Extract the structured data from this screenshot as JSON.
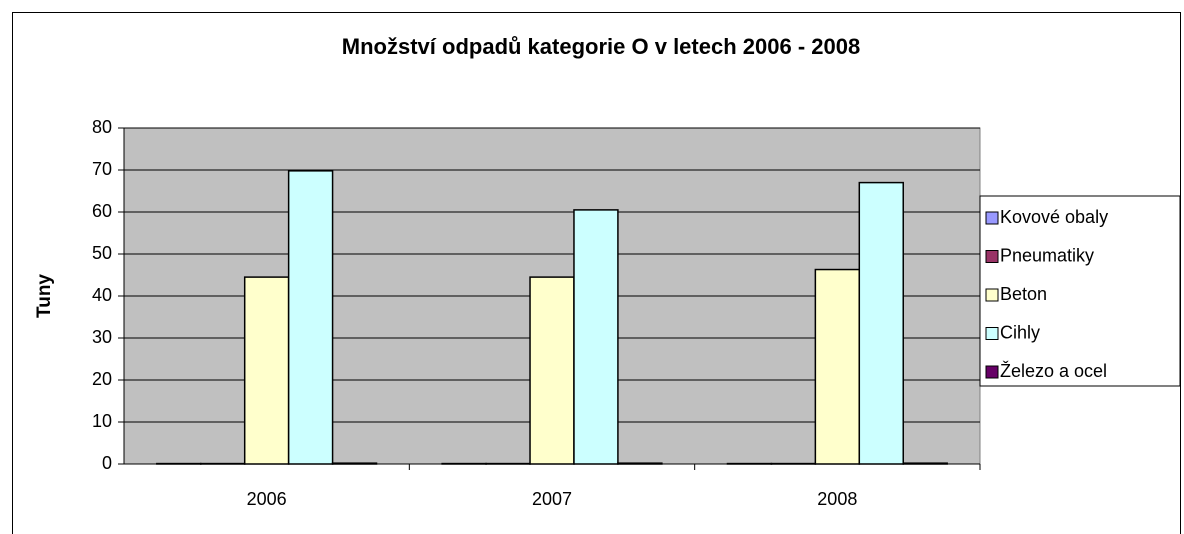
{
  "chart_data": {
    "type": "bar",
    "title": "Množství odpadů kategorie O v letech 2006 - 2008",
    "y_label": "Tuny",
    "categories": [
      "2006",
      "2007",
      "2008"
    ],
    "series": [
      {
        "name": "Kovové obaly",
        "color": "#9999ff",
        "values": [
          0.1,
          0.1,
          0.1
        ]
      },
      {
        "name": "Pneumatiky",
        "color": "#993366",
        "values": [
          0.1,
          0.1,
          0.1
        ]
      },
      {
        "name": "Beton",
        "color": "#ffffcc",
        "values": [
          44.5,
          44.5,
          46.3
        ]
      },
      {
        "name": "Cihly",
        "color": "#ccffff",
        "values": [
          69.8,
          60.5,
          67
        ]
      },
      {
        "name": "Železo a ocel",
        "color": "#660066",
        "values": [
          0.2,
          0.2,
          0.2
        ]
      }
    ],
    "ylim": [
      0,
      80
    ],
    "yticks": [
      0,
      10,
      20,
      30,
      40,
      50,
      60,
      70,
      80
    ],
    "grid": true,
    "legend": "right"
  }
}
